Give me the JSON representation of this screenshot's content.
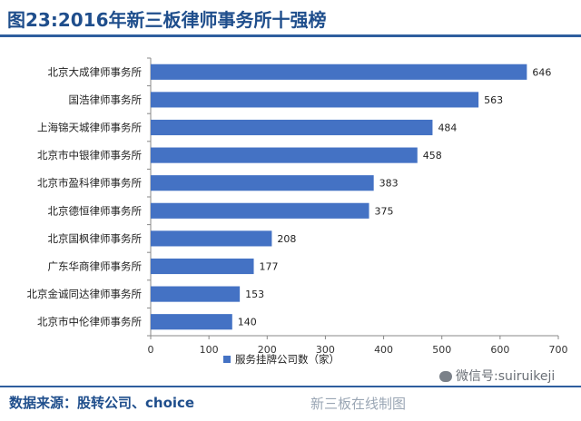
{
  "header": {
    "title": "图23:2016年新三板律师事务所十强榜"
  },
  "footer": {
    "source": "数据来源：股转公司、choice",
    "watermark": "新三板在线制图",
    "wechat": "微信号:suiruikeji"
  },
  "colors": {
    "bar": "#4472c4",
    "title": "#1f4e8c",
    "rule": "#2e5e9e"
  },
  "chart_data": {
    "type": "bar",
    "orientation": "horizontal",
    "title": "2016年新三板律师事务所十强榜",
    "categories": [
      "北京大成律师事务所",
      "国浩律师事务所",
      "上海锦天城律师事务所",
      "北京市中银律师事务所",
      "北京市盈科律师事务所",
      "北京德恒律师事务所",
      "北京国枫律师事务所",
      "广东华商律师事务所",
      "北京金诚同达律师事务所",
      "北京市中伦律师事务所"
    ],
    "series": [
      {
        "name": "服务挂牌公司数（家）",
        "values": [
          646,
          563,
          484,
          458,
          383,
          375,
          208,
          177,
          153,
          140
        ]
      }
    ],
    "xlim": [
      0,
      700
    ],
    "xticks": [
      0,
      100,
      200,
      300,
      400,
      500,
      600,
      700
    ],
    "xtick_labels": [
      "0",
      "100",
      "200",
      "300",
      "400",
      "500",
      "600",
      "700"
    ],
    "legend_position": "bottom",
    "grid": false
  }
}
